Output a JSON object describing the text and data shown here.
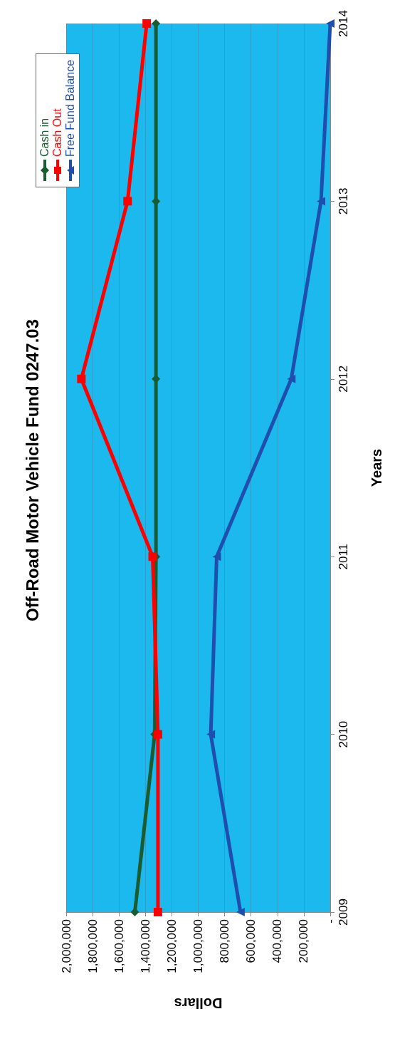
{
  "chart_data": {
    "type": "line",
    "orientation": "horizontal",
    "title": "Off-Road Motor Vehicle Fund 0247.03",
    "xlabel": "Dollars",
    "ylabel": "Years",
    "categories": [
      "2014",
      "2013",
      "2012",
      "2011",
      "2010",
      "2009"
    ],
    "series": [
      {
        "name": "Cash in",
        "color": "#1a5c32",
        "marker": "diamond",
        "values": [
          1320000,
          1320000,
          1320000,
          1320000,
          1330000,
          1480000
        ]
      },
      {
        "name": "Cash Out",
        "color": "#ff0000",
        "marker": "square",
        "values": [
          1390000,
          1535000,
          1885000,
          1345000,
          1305000,
          1305000
        ]
      },
      {
        "name": "Free Fund Balance",
        "color": "#1f4fae",
        "marker": "triangle",
        "values": [
          0,
          70000,
          295000,
          860000,
          905000,
          680000
        ]
      }
    ],
    "xlim": [
      2000000,
      0
    ],
    "xticks": [
      {
        "value": 0,
        "label": "-"
      },
      {
        "value": 200000,
        "label": "200,000"
      },
      {
        "value": 400000,
        "label": "400,000"
      },
      {
        "value": 600000,
        "label": "600,000"
      },
      {
        "value": 800000,
        "label": "800,000"
      },
      {
        "value": 1000000,
        "label": "1,000,000"
      },
      {
        "value": 1200000,
        "label": "1,200,000"
      },
      {
        "value": 1400000,
        "label": "1,400,000"
      },
      {
        "value": 1600000,
        "label": "1,600,000"
      },
      {
        "value": 1800000,
        "label": "1,800,000"
      },
      {
        "value": 2000000,
        "label": "2,000,000"
      }
    ],
    "grid": "x",
    "legend": "top left",
    "line_style": "solid"
  }
}
